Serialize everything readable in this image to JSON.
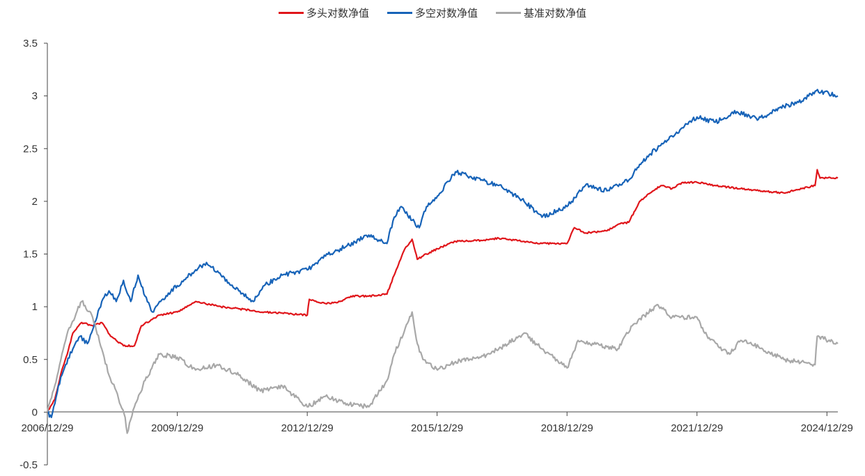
{
  "chart_data": {
    "type": "line",
    "title": "",
    "xlabel": "",
    "ylabel": "",
    "ylim": [
      -0.5,
      3.5
    ],
    "yticks": [
      -0.5,
      0,
      0.5,
      1,
      1.5,
      2,
      2.5,
      3,
      3.5
    ],
    "ytick_labels": [
      "-0.5",
      "0",
      "0.5",
      "1",
      "1.5",
      "2",
      "2.5",
      "3",
      "3.5"
    ],
    "x_range": [
      "2006/12/29",
      "2025/03/31"
    ],
    "xticks": [
      "2006/12/29",
      "2009/12/29",
      "2012/12/29",
      "2015/12/29",
      "2018/12/29",
      "2021/12/29",
      "2024/12/29"
    ],
    "legend_position": "top-center",
    "grid": false,
    "series": [
      {
        "name": "多头对数净值",
        "color": "#e0161b",
        "points": [
          [
            "2006/12/29",
            0.0
          ],
          [
            "2007/03/01",
            0.12
          ],
          [
            "2007/05/01",
            0.4
          ],
          [
            "2007/06/15",
            0.55
          ],
          [
            "2007/08/01",
            0.75
          ],
          [
            "2007/10/15",
            0.85
          ],
          [
            "2008/01/15",
            0.82
          ],
          [
            "2008/04/01",
            0.85
          ],
          [
            "2008/06/15",
            0.72
          ],
          [
            "2008/08/01",
            0.68
          ],
          [
            "2008/10/01",
            0.63
          ],
          [
            "2009/01/01",
            0.63
          ],
          [
            "2009/03/01",
            0.82
          ],
          [
            "2009/06/01",
            0.88
          ],
          [
            "2009/08/01",
            0.92
          ],
          [
            "2009/12/29",
            0.95
          ],
          [
            "2010/06/01",
            1.05
          ],
          [
            "2011/01/01",
            1.0
          ],
          [
            "2011/06/01",
            0.98
          ],
          [
            "2012/01/01",
            0.95
          ],
          [
            "2012/06/01",
            0.94
          ],
          [
            "2012/12/29",
            0.92
          ],
          [
            "2013/01/15",
            1.07
          ],
          [
            "2013/06/01",
            1.03
          ],
          [
            "2013/10/01",
            1.05
          ],
          [
            "2014/01/01",
            1.1
          ],
          [
            "2014/06/01",
            1.1
          ],
          [
            "2014/11/01",
            1.12
          ],
          [
            "2015/01/01",
            1.3
          ],
          [
            "2015/04/01",
            1.55
          ],
          [
            "2015/06/01",
            1.64
          ],
          [
            "2015/07/15",
            1.45
          ],
          [
            "2015/10/01",
            1.5
          ],
          [
            "2016/01/01",
            1.55
          ],
          [
            "2016/06/01",
            1.62
          ],
          [
            "2017/01/01",
            1.63
          ],
          [
            "2017/06/01",
            1.65
          ],
          [
            "2018/01/01",
            1.62
          ],
          [
            "2018/06/01",
            1.6
          ],
          [
            "2018/12/29",
            1.6
          ],
          [
            "2019/03/01",
            1.75
          ],
          [
            "2019/06/01",
            1.7
          ],
          [
            "2019/12/01",
            1.72
          ],
          [
            "2020/03/01",
            1.78
          ],
          [
            "2020/06/01",
            1.8
          ],
          [
            "2020/09/01",
            2.0
          ],
          [
            "2020/12/01",
            2.08
          ],
          [
            "2021/03/01",
            2.15
          ],
          [
            "2021/06/01",
            2.12
          ],
          [
            "2021/09/01",
            2.18
          ],
          [
            "2021/12/29",
            2.18
          ],
          [
            "2022/06/01",
            2.15
          ],
          [
            "2023/01/01",
            2.12
          ],
          [
            "2023/06/01",
            2.1
          ],
          [
            "2024/01/01",
            2.08
          ],
          [
            "2024/06/01",
            2.12
          ],
          [
            "2024/09/20",
            2.15
          ],
          [
            "2024/10/08",
            2.3
          ],
          [
            "2024/11/01",
            2.22
          ],
          [
            "2025/03/31",
            2.22
          ]
        ]
      },
      {
        "name": "多空对数净值",
        "color": "#1763b8",
        "points": [
          [
            "2006/12/29",
            0.0
          ],
          [
            "2007/02/01",
            -0.05
          ],
          [
            "2007/04/01",
            0.25
          ],
          [
            "2007/06/01",
            0.45
          ],
          [
            "2007/08/01",
            0.6
          ],
          [
            "2007/10/01",
            0.72
          ],
          [
            "2007/12/01",
            0.65
          ],
          [
            "2008/02/01",
            0.85
          ],
          [
            "2008/04/01",
            1.05
          ],
          [
            "2008/06/01",
            1.15
          ],
          [
            "2008/08/01",
            1.05
          ],
          [
            "2008/10/01",
            1.25
          ],
          [
            "2008/12/01",
            1.05
          ],
          [
            "2009/02/01",
            1.3
          ],
          [
            "2009/04/01",
            1.1
          ],
          [
            "2009/06/01",
            0.95
          ],
          [
            "2009/08/01",
            1.05
          ],
          [
            "2009/12/29",
            1.2
          ],
          [
            "2010/06/01",
            1.35
          ],
          [
            "2010/09/01",
            1.42
          ],
          [
            "2011/01/01",
            1.3
          ],
          [
            "2011/06/01",
            1.15
          ],
          [
            "2011/10/01",
            1.05
          ],
          [
            "2012/01/01",
            1.2
          ],
          [
            "2012/06/01",
            1.3
          ],
          [
            "2012/12/29",
            1.35
          ],
          [
            "2013/06/01",
            1.48
          ],
          [
            "2013/12/01",
            1.58
          ],
          [
            "2014/06/01",
            1.68
          ],
          [
            "2014/11/01",
            1.6
          ],
          [
            "2015/01/01",
            1.85
          ],
          [
            "2015/03/01",
            1.95
          ],
          [
            "2015/06/01",
            1.82
          ],
          [
            "2015/08/01",
            1.75
          ],
          [
            "2015/10/01",
            1.95
          ],
          [
            "2016/01/01",
            2.05
          ],
          [
            "2016/06/01",
            2.28
          ],
          [
            "2017/01/01",
            2.2
          ],
          [
            "2017/06/01",
            2.15
          ],
          [
            "2018/01/01",
            2.0
          ],
          [
            "2018/06/01",
            1.85
          ],
          [
            "2018/12/29",
            1.95
          ],
          [
            "2019/06/01",
            2.15
          ],
          [
            "2019/12/01",
            2.1
          ],
          [
            "2020/06/01",
            2.2
          ],
          [
            "2020/09/01",
            2.35
          ],
          [
            "2020/12/01",
            2.45
          ],
          [
            "2021/06/01",
            2.62
          ],
          [
            "2021/12/29",
            2.8
          ],
          [
            "2022/06/01",
            2.75
          ],
          [
            "2022/12/01",
            2.85
          ],
          [
            "2023/06/01",
            2.78
          ],
          [
            "2024/01/01",
            2.9
          ],
          [
            "2024/06/01",
            2.95
          ],
          [
            "2024/10/01",
            3.05
          ],
          [
            "2025/03/31",
            3.0
          ]
        ]
      },
      {
        "name": "基准对数净值",
        "color": "#a8a8a8",
        "points": [
          [
            "2006/12/29",
            0.0
          ],
          [
            "2007/03/01",
            0.25
          ],
          [
            "2007/05/01",
            0.55
          ],
          [
            "2007/07/01",
            0.8
          ],
          [
            "2007/10/15",
            1.05
          ],
          [
            "2008/01/15",
            0.9
          ],
          [
            "2008/04/01",
            0.6
          ],
          [
            "2008/06/01",
            0.35
          ],
          [
            "2008/08/01",
            0.2
          ],
          [
            "2008/10/15",
            -0.05
          ],
          [
            "2008/11/01",
            -0.2
          ],
          [
            "2009/01/01",
            0.05
          ],
          [
            "2009/04/01",
            0.3
          ],
          [
            "2009/08/01",
            0.55
          ],
          [
            "2009/12/29",
            0.52
          ],
          [
            "2010/06/01",
            0.4
          ],
          [
            "2010/12/01",
            0.45
          ],
          [
            "2011/06/01",
            0.35
          ],
          [
            "2011/12/01",
            0.2
          ],
          [
            "2012/06/01",
            0.25
          ],
          [
            "2012/12/29",
            0.05
          ],
          [
            "2013/06/01",
            0.15
          ],
          [
            "2013/12/01",
            0.08
          ],
          [
            "2014/06/01",
            0.05
          ],
          [
            "2014/11/01",
            0.3
          ],
          [
            "2015/01/01",
            0.55
          ],
          [
            "2015/06/01",
            0.95
          ],
          [
            "2015/07/15",
            0.65
          ],
          [
            "2015/09/01",
            0.5
          ],
          [
            "2016/01/01",
            0.4
          ],
          [
            "2016/06/01",
            0.48
          ],
          [
            "2017/01/01",
            0.52
          ],
          [
            "2017/06/01",
            0.6
          ],
          [
            "2018/01/01",
            0.75
          ],
          [
            "2018/06/01",
            0.6
          ],
          [
            "2018/12/29",
            0.42
          ],
          [
            "2019/04/01",
            0.68
          ],
          [
            "2019/12/01",
            0.62
          ],
          [
            "2020/03/01",
            0.6
          ],
          [
            "2020/07/01",
            0.82
          ],
          [
            "2021/02/01",
            1.02
          ],
          [
            "2021/06/01",
            0.9
          ],
          [
            "2021/12/29",
            0.9
          ],
          [
            "2022/04/01",
            0.7
          ],
          [
            "2022/10/01",
            0.55
          ],
          [
            "2023/01/01",
            0.68
          ],
          [
            "2023/06/01",
            0.62
          ],
          [
            "2024/01/01",
            0.5
          ],
          [
            "2024/09/20",
            0.45
          ],
          [
            "2024/10/08",
            0.72
          ],
          [
            "2025/03/31",
            0.65
          ]
        ]
      }
    ]
  }
}
